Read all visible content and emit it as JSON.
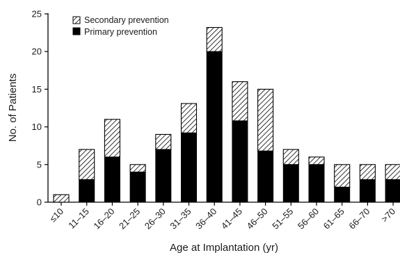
{
  "chart_data": {
    "type": "bar",
    "stacked": true,
    "xlabel": "Age at Implantation (yr)",
    "ylabel": "No. of Patients",
    "ylim": [
      0,
      25
    ],
    "yticks": [
      0,
      5,
      10,
      15,
      20,
      25
    ],
    "grid": false,
    "legend_position": "top-left",
    "categories": [
      "≤10",
      "11–15",
      "16–20",
      "21–25",
      "26–30",
      "31–35",
      "36–40",
      "41–45",
      "46–50",
      "51–55",
      "56–60",
      "61–65",
      "66–70",
      ">70"
    ],
    "series": [
      {
        "name": "Primary prevention",
        "pattern": "solid",
        "color": "#000000",
        "values": [
          0,
          3,
          6,
          4,
          7,
          9.2,
          20,
          10.8,
          6.8,
          5,
          5,
          2,
          3,
          3
        ]
      },
      {
        "name": "Secondary prevention",
        "pattern": "hatched",
        "color": "#000000",
        "values": [
          1,
          4,
          5,
          1,
          2,
          3.9,
          3.2,
          5.2,
          8.2,
          2,
          1,
          3,
          2,
          2
        ]
      }
    ],
    "legend": [
      {
        "label": "Secondary prevention",
        "pattern": "hatched"
      },
      {
        "label": "Primary prevention",
        "pattern": "solid"
      }
    ]
  }
}
